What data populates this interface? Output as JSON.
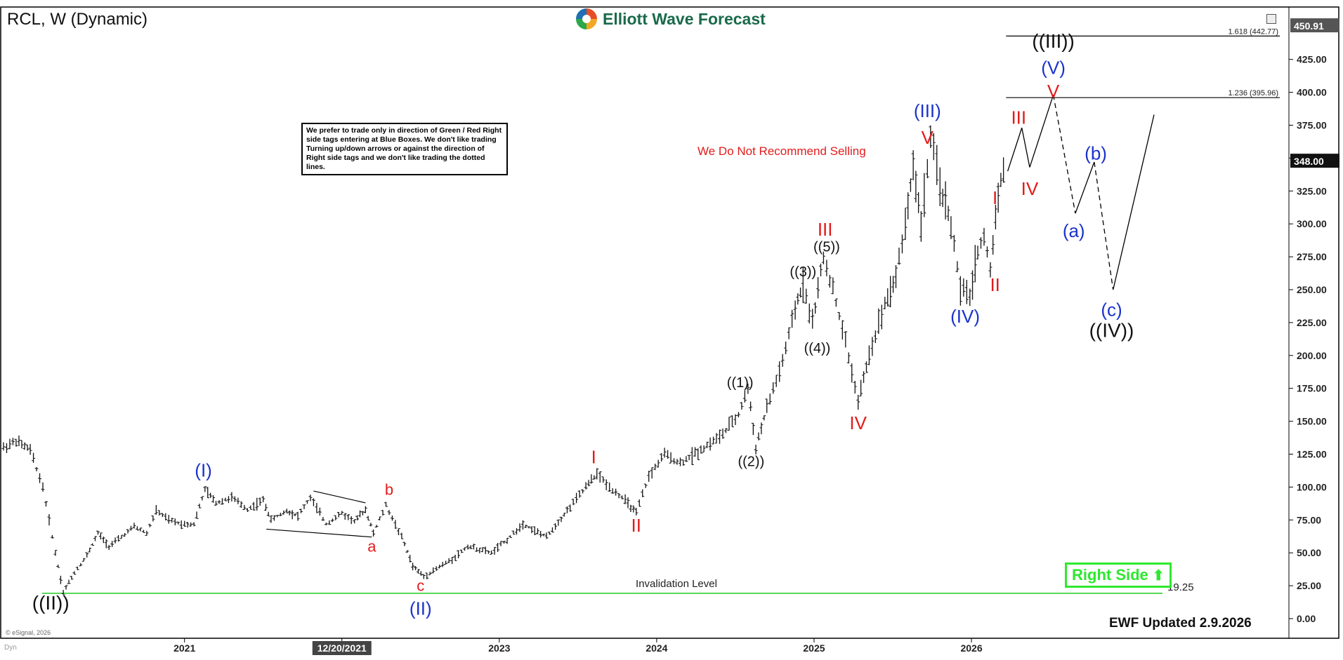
{
  "header": {
    "symbol_title": "RCL, W (Dynamic)",
    "brand_name": "Elliott Wave Forecast"
  },
  "annotations": {
    "note_box": "We prefer to trade only in direction of Green / Red Right side tags entering at Blue Boxes. We don't like trading Turning up/down arrows or against the direction of Right side tags and we don't like trading the dotted lines.",
    "no_sell": "We Do Not Recommend Selling",
    "right_side": "Right Side",
    "updated": "EWF Updated 2.9.2026",
    "copyright": "© eSignal, 2026",
    "dyn": "Dyn"
  },
  "colors": {
    "wave_black": "#111111",
    "wave_blue": "#1a33cc",
    "wave_red": "#e31b1b",
    "invalidation_green": "#22cc22",
    "bars": "#111111",
    "right_side_green": "#2ee82e"
  },
  "chart_data": {
    "type": "line",
    "title": "RCL, W (Dynamic)",
    "xlabel": "",
    "ylabel": "",
    "ylim": [
      0,
      465
    ],
    "y_ticks": [
      0,
      25,
      50,
      75,
      100,
      125,
      150,
      175,
      200,
      225,
      250,
      275,
      300,
      325,
      350,
      375,
      400,
      425
    ],
    "y_tick_labels": [
      "0.00",
      "25.00",
      "50.00",
      "75.00",
      "100.00",
      "125.00",
      "150.00",
      "175.00",
      "200.00",
      "225.00",
      "250.00",
      "275.00",
      "300.00",
      "325.00",
      "350.00",
      "375.00",
      "400.00",
      "425.00"
    ],
    "x_ticks": [
      {
        "label": "2021",
        "t": 2021.0
      },
      {
        "label": "12/20/2021",
        "t": 2022.0,
        "highlight": true
      },
      {
        "label": "2023",
        "t": 2023.0
      },
      {
        "label": "2024",
        "t": 2024.0
      },
      {
        "label": "2025",
        "t": 2025.0
      },
      {
        "label": "2026",
        "t": 2026.0
      }
    ],
    "grid": false,
    "price_labels": [
      {
        "label": "450.91",
        "value": 450.91,
        "style": "box-gray"
      },
      {
        "label": "348.00",
        "value": 348.0,
        "style": "box-black"
      }
    ],
    "series": [
      {
        "kind": "price",
        "points": [
          {
            "t": 2019.85,
            "v": 130
          },
          {
            "t": 2019.93,
            "v": 135
          },
          {
            "t": 2020.02,
            "v": 128
          },
          {
            "t": 2020.1,
            "v": 100
          },
          {
            "t": 2020.18,
            "v": 50
          },
          {
            "t": 2020.23,
            "v": 20
          },
          {
            "t": 2020.3,
            "v": 35
          },
          {
            "t": 2020.38,
            "v": 48
          },
          {
            "t": 2020.45,
            "v": 65
          },
          {
            "t": 2020.52,
            "v": 55
          },
          {
            "t": 2020.6,
            "v": 62
          },
          {
            "t": 2020.68,
            "v": 70
          },
          {
            "t": 2020.76,
            "v": 65
          },
          {
            "t": 2020.82,
            "v": 82
          },
          {
            "t": 2020.9,
            "v": 75
          },
          {
            "t": 2020.98,
            "v": 72
          },
          {
            "t": 2021.06,
            "v": 72
          },
          {
            "t": 2021.13,
            "v": 98
          },
          {
            "t": 2021.2,
            "v": 88
          },
          {
            "t": 2021.3,
            "v": 92
          },
          {
            "t": 2021.4,
            "v": 83
          },
          {
            "t": 2021.5,
            "v": 90
          },
          {
            "t": 2021.55,
            "v": 75
          },
          {
            "t": 2021.65,
            "v": 82
          },
          {
            "t": 2021.72,
            "v": 78
          },
          {
            "t": 2021.8,
            "v": 92
          },
          {
            "t": 2021.9,
            "v": 72
          },
          {
            "t": 2022.0,
            "v": 80
          },
          {
            "t": 2022.08,
            "v": 74
          },
          {
            "t": 2022.15,
            "v": 83
          },
          {
            "t": 2022.2,
            "v": 65
          },
          {
            "t": 2022.28,
            "v": 86
          },
          {
            "t": 2022.38,
            "v": 62
          },
          {
            "t": 2022.45,
            "v": 40
          },
          {
            "t": 2022.52,
            "v": 32
          },
          {
            "t": 2022.6,
            "v": 38
          },
          {
            "t": 2022.7,
            "v": 45
          },
          {
            "t": 2022.8,
            "v": 55
          },
          {
            "t": 2022.95,
            "v": 50
          },
          {
            "t": 2023.05,
            "v": 60
          },
          {
            "t": 2023.15,
            "v": 72
          },
          {
            "t": 2023.3,
            "v": 62
          },
          {
            "t": 2023.45,
            "v": 85
          },
          {
            "t": 2023.55,
            "v": 100
          },
          {
            "t": 2023.62,
            "v": 110
          },
          {
            "t": 2023.7,
            "v": 100
          },
          {
            "t": 2023.8,
            "v": 90
          },
          {
            "t": 2023.87,
            "v": 80
          },
          {
            "t": 2023.95,
            "v": 108
          },
          {
            "t": 2024.05,
            "v": 125
          },
          {
            "t": 2024.15,
            "v": 118
          },
          {
            "t": 2024.3,
            "v": 130
          },
          {
            "t": 2024.42,
            "v": 140
          },
          {
            "t": 2024.52,
            "v": 155
          },
          {
            "t": 2024.58,
            "v": 175
          },
          {
            "t": 2024.63,
            "v": 130
          },
          {
            "t": 2024.7,
            "v": 160
          },
          {
            "t": 2024.8,
            "v": 195
          },
          {
            "t": 2024.88,
            "v": 235
          },
          {
            "t": 2024.93,
            "v": 255
          },
          {
            "t": 2024.99,
            "v": 225
          },
          {
            "t": 2025.06,
            "v": 275
          },
          {
            "t": 2025.12,
            "v": 250
          },
          {
            "t": 2025.2,
            "v": 210
          },
          {
            "t": 2025.28,
            "v": 165
          },
          {
            "t": 2025.35,
            "v": 200
          },
          {
            "t": 2025.45,
            "v": 240
          },
          {
            "t": 2025.52,
            "v": 260
          },
          {
            "t": 2025.58,
            "v": 300
          },
          {
            "t": 2025.63,
            "v": 345
          },
          {
            "t": 2025.68,
            "v": 300
          },
          {
            "t": 2025.74,
            "v": 365
          },
          {
            "t": 2025.8,
            "v": 330
          },
          {
            "t": 2025.87,
            "v": 300
          },
          {
            "t": 2025.93,
            "v": 250
          },
          {
            "t": 2025.99,
            "v": 245
          },
          {
            "t": 2026.04,
            "v": 280
          },
          {
            "t": 2026.08,
            "v": 290
          },
          {
            "t": 2026.12,
            "v": 265
          },
          {
            "t": 2026.17,
            "v": 325
          },
          {
            "t": 2026.22,
            "v": 348
          }
        ]
      }
    ],
    "projection": [
      {
        "from": [
          2026.23,
          340
        ],
        "to": [
          2026.32,
          373
        ],
        "style": "solid"
      },
      {
        "from": [
          2026.32,
          373
        ],
        "to": [
          2026.37,
          343
        ],
        "style": "solid"
      },
      {
        "from": [
          2026.37,
          343
        ],
        "to": [
          2026.52,
          398
        ],
        "style": "solid"
      },
      {
        "from": [
          2026.52,
          398
        ],
        "to": [
          2026.66,
          308
        ],
        "style": "dashed"
      },
      {
        "from": [
          2026.66,
          308
        ],
        "to": [
          2026.78,
          347
        ],
        "style": "solid"
      },
      {
        "from": [
          2026.78,
          347
        ],
        "to": [
          2026.9,
          250
        ],
        "style": "dashed"
      },
      {
        "from": [
          2026.9,
          250
        ],
        "to": [
          2027.16,
          383
        ],
        "style": "solid"
      }
    ],
    "fib_levels": [
      {
        "label": "1.618 (442.77)",
        "value": 442.77,
        "t_start": 2026.22
      },
      {
        "label": "1.236 (395.96)",
        "value": 395.96,
        "t_start": 2026.22
      }
    ],
    "invalidation": {
      "label": "Invalidation Level",
      "value_label": "19.25",
      "value": 19.25
    },
    "wave_labels": [
      {
        "text": "((II))",
        "t": 2020.15,
        "v": 7,
        "color": "black",
        "size": 28
      },
      {
        "text": "(I)",
        "t": 2021.12,
        "v": 108,
        "color": "blue",
        "size": 26
      },
      {
        "text": "b",
        "t": 2022.3,
        "v": 94,
        "color": "red",
        "size": 22
      },
      {
        "text": "a",
        "t": 2022.19,
        "v": 51,
        "color": "red",
        "size": 22
      },
      {
        "text": "c",
        "t": 2022.5,
        "v": 21,
        "color": "red",
        "size": 22
      },
      {
        "text": "(II)",
        "t": 2022.5,
        "v": 3,
        "color": "blue",
        "size": 26
      },
      {
        "text": "I",
        "t": 2023.6,
        "v": 118,
        "color": "red",
        "size": 26
      },
      {
        "text": "II",
        "t": 2023.87,
        "v": 66,
        "color": "red",
        "size": 26
      },
      {
        "text": "((1))",
        "t": 2024.53,
        "v": 176,
        "color": "black",
        "size": 20
      },
      {
        "text": "((2))",
        "t": 2024.6,
        "v": 116,
        "color": "black",
        "size": 20
      },
      {
        "text": "((3))",
        "t": 2024.93,
        "v": 260,
        "color": "black",
        "size": 20
      },
      {
        "text": "((4))",
        "t": 2025.02,
        "v": 202,
        "color": "black",
        "size": 20
      },
      {
        "text": "((5))",
        "t": 2025.08,
        "v": 279,
        "color": "black",
        "size": 20
      },
      {
        "text": "III",
        "t": 2025.07,
        "v": 291,
        "color": "red",
        "size": 26
      },
      {
        "text": "IV",
        "t": 2025.28,
        "v": 144,
        "color": "red",
        "size": 26
      },
      {
        "text": "(III)",
        "t": 2025.72,
        "v": 381,
        "color": "blue",
        "size": 26
      },
      {
        "text": "V",
        "t": 2025.72,
        "v": 361,
        "color": "red",
        "size": 26
      },
      {
        "text": "(IV)",
        "t": 2025.96,
        "v": 225,
        "color": "blue",
        "size": 26
      },
      {
        "text": "I",
        "t": 2026.15,
        "v": 315,
        "color": "red",
        "size": 26
      },
      {
        "text": "II",
        "t": 2026.15,
        "v": 249,
        "color": "red",
        "size": 26
      },
      {
        "text": "III",
        "t": 2026.3,
        "v": 376,
        "color": "red",
        "size": 26
      },
      {
        "text": "IV",
        "t": 2026.37,
        "v": 322,
        "color": "red",
        "size": 26
      },
      {
        "text": "((III))",
        "t": 2026.52,
        "v": 434,
        "color": "black",
        "size": 28
      },
      {
        "text": "(V)",
        "t": 2026.52,
        "v": 414,
        "color": "blue",
        "size": 26
      },
      {
        "text": "V",
        "t": 2026.52,
        "v": 396,
        "color": "red",
        "size": 26
      },
      {
        "text": "(a)",
        "t": 2026.65,
        "v": 290,
        "color": "blue",
        "size": 26
      },
      {
        "text": "(b)",
        "t": 2026.79,
        "v": 349,
        "color": "blue",
        "size": 26
      },
      {
        "text": "(c)",
        "t": 2026.89,
        "v": 230,
        "color": "blue",
        "size": 26
      },
      {
        "text": "((IV))",
        "t": 2026.89,
        "v": 214,
        "color": "black",
        "size": 28
      }
    ],
    "triangle": [
      {
        "from": [
          2021.52,
          68
        ],
        "to": [
          2022.19,
          62
        ]
      },
      {
        "from": [
          2021.82,
          97
        ],
        "to": [
          2022.15,
          88
        ]
      }
    ]
  }
}
